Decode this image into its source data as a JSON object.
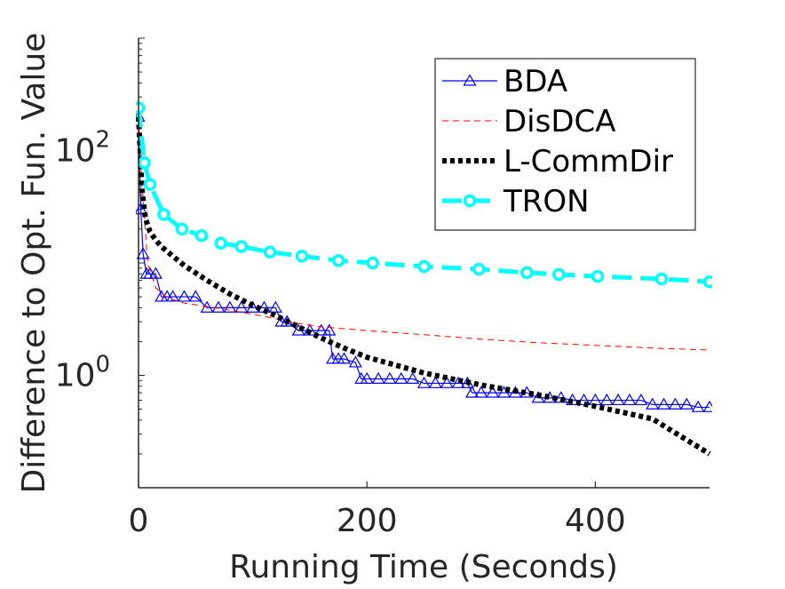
{
  "chart_data": {
    "type": "line",
    "title": "",
    "xlabel": "Running Time (Seconds)",
    "ylabel": "Difference to Opt. Fun. Value",
    "xlim": [
      0,
      500
    ],
    "ylim_log10": [
      -1,
      3
    ],
    "yscale": "log",
    "x_ticks": [
      0,
      200,
      400
    ],
    "x_tick_labels": [
      "0",
      "200",
      "400"
    ],
    "y_ticks": [
      0,
      2
    ],
    "y_tick_labels": [
      {
        "base": "10",
        "exp": "0"
      },
      {
        "base": "10",
        "exp": "2"
      }
    ],
    "legend_position": "top-right",
    "series": [
      {
        "name": "BDA",
        "color": "#0000ff",
        "style": "solid",
        "marker": "triangle",
        "x": [
          0,
          2,
          4,
          7,
          10,
          15,
          20,
          25,
          30,
          40,
          50,
          60,
          70,
          80,
          90,
          100,
          110,
          120,
          125,
          130,
          140,
          150,
          160,
          167,
          170,
          175,
          180,
          190,
          195,
          200,
          210,
          220,
          230,
          240,
          250,
          260,
          270,
          280,
          288,
          292,
          300,
          310,
          320,
          330,
          340,
          350,
          360,
          370,
          380,
          390,
          400,
          410,
          420,
          430,
          440,
          450,
          460,
          470,
          480,
          490,
          500
        ],
        "y": [
          200,
          30,
          12,
          8,
          8,
          8,
          5,
          5,
          5,
          5,
          5,
          4,
          4,
          4,
          4,
          4,
          4,
          4,
          3,
          3,
          2.5,
          2.5,
          2.5,
          2.5,
          1.4,
          1.4,
          1.4,
          1.3,
          0.93,
          0.93,
          0.93,
          0.93,
          0.93,
          0.93,
          0.85,
          0.85,
          0.85,
          0.85,
          0.85,
          0.7,
          0.7,
          0.7,
          0.7,
          0.7,
          0.7,
          0.63,
          0.63,
          0.63,
          0.6,
          0.6,
          0.6,
          0.6,
          0.6,
          0.6,
          0.6,
          0.55,
          0.55,
          0.55,
          0.55,
          0.52,
          0.52
        ]
      },
      {
        "name": "DisDCA",
        "color": "#ff0000",
        "style": "dashed",
        "marker": "none",
        "x": [
          0,
          3,
          8,
          15,
          25,
          40,
          60,
          80,
          100,
          120,
          140,
          160,
          180,
          200,
          250,
          300,
          350,
          400,
          450,
          500
        ],
        "y": [
          200,
          50,
          10,
          6,
          4.9,
          4.4,
          4.1,
          3.8,
          3.5,
          3.2,
          2.9,
          2.7,
          2.6,
          2.5,
          2.3,
          2.1,
          1.95,
          1.85,
          1.75,
          1.68
        ]
      },
      {
        "name": "L-CommDir",
        "color": "#000000",
        "style": "dotted",
        "marker": "none",
        "x": [
          0,
          3,
          6,
          10,
          15,
          20,
          30,
          40,
          60,
          80,
          100,
          120,
          140,
          160,
          180,
          200,
          250,
          300,
          350,
          400,
          450,
          500
        ],
        "y": [
          200,
          45,
          25,
          19,
          16,
          14,
          11.5,
          9.5,
          7,
          5.3,
          4.2,
          3.4,
          2.7,
          2.15,
          1.75,
          1.45,
          1.05,
          0.82,
          0.67,
          0.53,
          0.41,
          0.2
        ]
      },
      {
        "name": "TRON",
        "color": "#00ffff",
        "style": "dashed",
        "marker": "circle",
        "x": [
          0,
          5,
          10,
          22,
          38,
          55,
          72,
          90,
          115,
          143,
          175,
          205,
          250,
          298,
          340,
          368,
          402,
          458,
          500
        ],
        "y": [
          240,
          78,
          50,
          27,
          20,
          17.5,
          15,
          14,
          12.5,
          11.5,
          10.5,
          10,
          9.3,
          8.8,
          8.2,
          7.9,
          7.6,
          7.2,
          6.8
        ]
      }
    ]
  }
}
